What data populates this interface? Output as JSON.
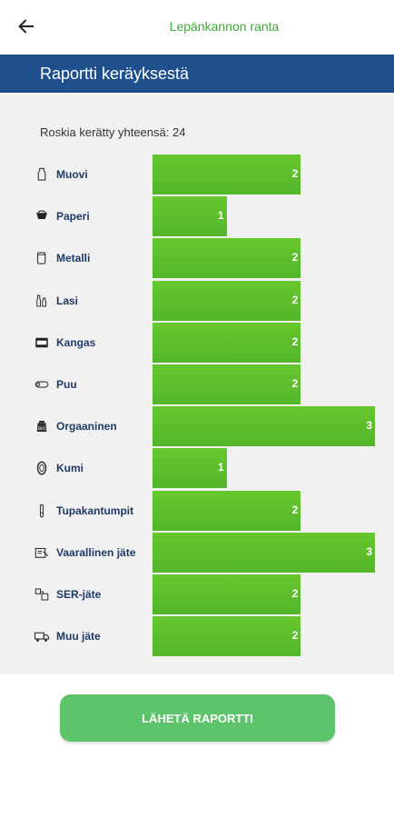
{
  "topbar": {
    "title": "Lepänkannon ranta",
    "back_icon": "arrow-left-icon"
  },
  "header": {
    "title": "Raportti keräyksestä"
  },
  "summary": {
    "total_text": "Roskia kerätty yhteensä: 24"
  },
  "chart_data": {
    "type": "bar",
    "orientation": "horizontal",
    "categories": [
      "Muovi",
      "Paperi",
      "Metalli",
      "Lasi",
      "Kangas",
      "Puu",
      "Orgaaninen",
      "Kumi",
      "Tupakantumpit",
      "Vaarallinen jäte",
      "SER-jäte",
      "Muu jäte"
    ],
    "values": [
      2,
      1,
      2,
      2,
      2,
      2,
      3,
      1,
      2,
      3,
      2,
      2
    ],
    "icons": [
      "bottle-icon",
      "cup-icon",
      "can-icon",
      "glass-bottle-icon",
      "fabric-icon",
      "wood-icon",
      "food-bag-icon",
      "tire-icon",
      "cigarette-butt-icon",
      "hazard-icon",
      "electronics-icon",
      "truck-icon"
    ],
    "xlim": [
      0,
      3
    ],
    "bar_color": "#55b52b"
  },
  "footer": {
    "send_label": "LÄHETÄ RAPORTTI"
  },
  "colors": {
    "accent_green": "#3aaa35",
    "header_blue": "#1f4f8c",
    "button_green": "#5ec46b",
    "label_navy": "#1e3a66"
  }
}
